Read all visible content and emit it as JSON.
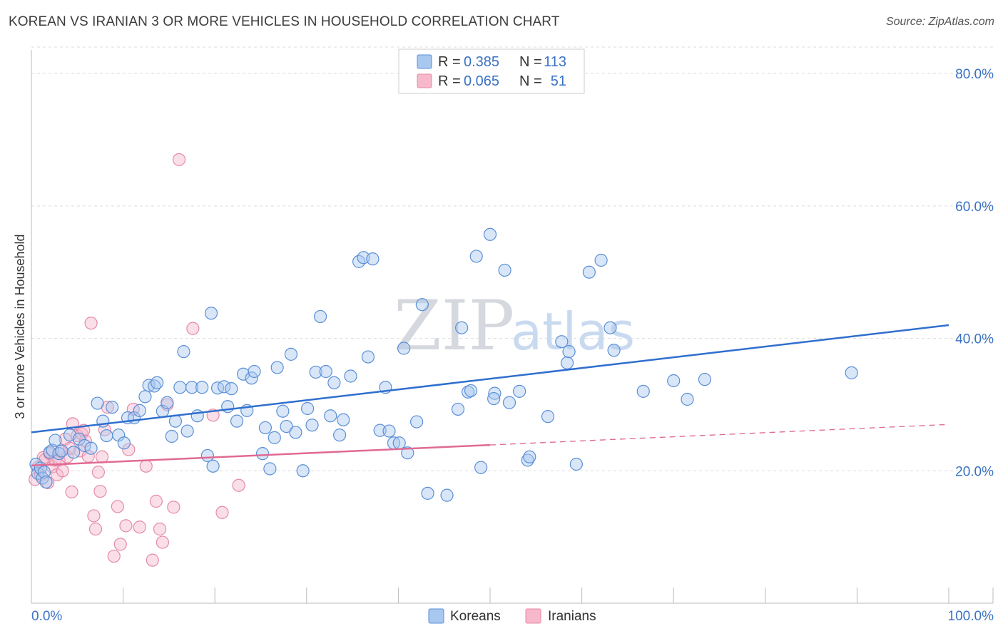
{
  "header": {
    "title": "KOREAN VS IRANIAN 3 OR MORE VEHICLES IN HOUSEHOLD CORRELATION CHART",
    "source": "Source: ZipAtlas.com"
  },
  "watermark": {
    "zip": "ZIP",
    "atlas": "atlas"
  },
  "legend": {
    "r_label": "R =",
    "n_label": "N =",
    "koreans": {
      "r": "0.385",
      "n": "113"
    },
    "iranians": {
      "r": "0.065",
      "n": "51"
    }
  },
  "bottom_legend": {
    "koreans": "Koreans",
    "iranians": "Iranians"
  },
  "colors": {
    "koreans_fill": "#a8c8f0",
    "koreans_stroke": "#5b8fd6",
    "koreans_line": "#2f6fcf",
    "iranians_fill": "#f7b8cb",
    "iranians_stroke": "#e58aa8",
    "iranians_line": "#e06a93"
  },
  "chart_data": {
    "type": "scatter",
    "title": "KOREAN VS IRANIAN 3 OR MORE VEHICLES IN HOUSEHOLD CORRELATION CHART",
    "xlabel": "",
    "ylabel": "3 or more Vehicles in Household",
    "xlim": [
      0,
      100
    ],
    "ylim": [
      0,
      84
    ],
    "x_tick_labels": [
      "0.0%",
      "100.0%"
    ],
    "y_ticks": [
      20,
      40,
      60,
      80
    ],
    "y_tick_labels": [
      "20.0%",
      "40.0%",
      "60.0%",
      "80.0%"
    ],
    "grid": true,
    "series": [
      {
        "name": "Koreans",
        "r": 0.385,
        "n": 113,
        "trend": {
          "x": [
            0,
            100
          ],
          "y": [
            25.8,
            42.0
          ],
          "dashed_from": null
        },
        "points": [
          [
            0.5,
            21.0
          ],
          [
            0.7,
            19.6
          ],
          [
            1.0,
            20.4
          ],
          [
            1.2,
            18.9
          ],
          [
            1.4,
            19.8
          ],
          [
            1.6,
            18.3
          ],
          [
            2.0,
            22.8
          ],
          [
            2.3,
            23.1
          ],
          [
            2.6,
            24.6
          ],
          [
            3.0,
            22.6
          ],
          [
            3.3,
            23.0
          ],
          [
            4.2,
            25.4
          ],
          [
            4.6,
            22.8
          ],
          [
            5.2,
            24.8
          ],
          [
            5.8,
            23.8
          ],
          [
            6.5,
            23.4
          ],
          [
            7.2,
            30.2
          ],
          [
            7.8,
            27.5
          ],
          [
            8.2,
            25.3
          ],
          [
            8.8,
            29.6
          ],
          [
            9.5,
            25.4
          ],
          [
            10.1,
            24.2
          ],
          [
            10.5,
            28.0
          ],
          [
            11.2,
            28.0
          ],
          [
            11.8,
            29.1
          ],
          [
            12.4,
            31.2
          ],
          [
            12.8,
            32.9
          ],
          [
            13.4,
            32.8
          ],
          [
            13.7,
            33.3
          ],
          [
            14.3,
            29.0
          ],
          [
            14.8,
            30.3
          ],
          [
            15.3,
            25.2
          ],
          [
            15.7,
            27.5
          ],
          [
            16.2,
            32.6
          ],
          [
            16.6,
            38.0
          ],
          [
            17.0,
            26.0
          ],
          [
            17.5,
            32.6
          ],
          [
            18.1,
            28.3
          ],
          [
            18.6,
            32.6
          ],
          [
            19.2,
            22.3
          ],
          [
            19.6,
            43.8
          ],
          [
            19.8,
            20.7
          ],
          [
            20.3,
            32.5
          ],
          [
            21.0,
            32.7
          ],
          [
            21.4,
            29.7
          ],
          [
            21.8,
            32.4
          ],
          [
            22.4,
            27.5
          ],
          [
            23.1,
            34.6
          ],
          [
            23.5,
            29.1
          ],
          [
            24.0,
            34.0
          ],
          [
            24.3,
            35.0
          ],
          [
            25.2,
            22.6
          ],
          [
            25.5,
            26.5
          ],
          [
            26.0,
            20.3
          ],
          [
            26.5,
            25.0
          ],
          [
            26.8,
            35.6
          ],
          [
            27.4,
            29.0
          ],
          [
            27.8,
            26.7
          ],
          [
            28.3,
            37.6
          ],
          [
            28.8,
            25.8
          ],
          [
            29.6,
            20.0
          ],
          [
            30.1,
            29.4
          ],
          [
            30.6,
            26.9
          ],
          [
            31.0,
            34.9
          ],
          [
            31.5,
            43.3
          ],
          [
            32.1,
            35.0
          ],
          [
            32.6,
            28.3
          ],
          [
            33.0,
            33.3
          ],
          [
            33.6,
            25.4
          ],
          [
            34.0,
            27.7
          ],
          [
            34.8,
            34.3
          ],
          [
            35.7,
            51.6
          ],
          [
            36.2,
            52.2
          ],
          [
            36.7,
            37.2
          ],
          [
            37.2,
            52.0
          ],
          [
            38.0,
            26.1
          ],
          [
            38.6,
            32.6
          ],
          [
            39.0,
            26.0
          ],
          [
            39.5,
            24.2
          ],
          [
            40.1,
            24.2
          ],
          [
            40.6,
            38.5
          ],
          [
            41.0,
            22.7
          ],
          [
            42.0,
            27.4
          ],
          [
            42.6,
            45.1
          ],
          [
            43.2,
            16.6
          ],
          [
            45.3,
            16.3
          ],
          [
            46.5,
            29.3
          ],
          [
            46.9,
            41.6
          ],
          [
            47.6,
            31.9
          ],
          [
            47.9,
            32.1
          ],
          [
            48.5,
            52.4
          ],
          [
            49.0,
            20.5
          ],
          [
            50.0,
            55.7
          ],
          [
            50.5,
            31.7
          ],
          [
            50.4,
            30.9
          ],
          [
            51.6,
            50.3
          ],
          [
            52.1,
            30.3
          ],
          [
            53.2,
            32.0
          ],
          [
            54.1,
            21.6
          ],
          [
            54.3,
            22.1
          ],
          [
            56.3,
            28.2
          ],
          [
            57.8,
            39.5
          ],
          [
            58.4,
            36.3
          ],
          [
            58.6,
            38.0
          ],
          [
            59.4,
            21.0
          ],
          [
            60.8,
            50.0
          ],
          [
            62.1,
            51.8
          ],
          [
            63.1,
            41.6
          ],
          [
            63.5,
            38.2
          ],
          [
            66.7,
            32.0
          ],
          [
            70.0,
            33.6
          ],
          [
            71.5,
            30.8
          ],
          [
            73.4,
            33.8
          ],
          [
            89.4,
            34.8
          ]
        ]
      },
      {
        "name": "Iranians",
        "r": 0.065,
        "n": 51,
        "trend": {
          "x": [
            0,
            100
          ],
          "y": [
            20.8,
            27.0
          ],
          "solid_until": 50
        },
        "points": [
          [
            0.4,
            18.7
          ],
          [
            0.7,
            20.5
          ],
          [
            1.0,
            19.4
          ],
          [
            1.3,
            22.0
          ],
          [
            1.5,
            21.7
          ],
          [
            1.8,
            18.2
          ],
          [
            2.0,
            22.6
          ],
          [
            2.3,
            20.6
          ],
          [
            2.6,
            21.6
          ],
          [
            2.8,
            19.4
          ],
          [
            3.0,
            21.6
          ],
          [
            3.2,
            22.9
          ],
          [
            3.4,
            20.0
          ],
          [
            3.7,
            24.8
          ],
          [
            3.9,
            22.1
          ],
          [
            4.2,
            23.4
          ],
          [
            4.4,
            16.8
          ],
          [
            4.5,
            27.1
          ],
          [
            5.0,
            25.3
          ],
          [
            5.3,
            23.0
          ],
          [
            5.5,
            25.6
          ],
          [
            5.7,
            26.1
          ],
          [
            5.9,
            24.5
          ],
          [
            6.2,
            22.2
          ],
          [
            6.5,
            42.3
          ],
          [
            6.8,
            13.2
          ],
          [
            7.0,
            11.2
          ],
          [
            7.3,
            19.8
          ],
          [
            7.5,
            16.9
          ],
          [
            7.7,
            22.1
          ],
          [
            8.0,
            26.2
          ],
          [
            8.3,
            29.6
          ],
          [
            9.0,
            7.1
          ],
          [
            9.4,
            14.6
          ],
          [
            9.7,
            8.9
          ],
          [
            10.3,
            11.7
          ],
          [
            10.6,
            23.2
          ],
          [
            11.1,
            29.3
          ],
          [
            11.8,
            11.5
          ],
          [
            12.5,
            20.7
          ],
          [
            13.2,
            6.5
          ],
          [
            13.6,
            15.4
          ],
          [
            14.0,
            11.2
          ],
          [
            14.3,
            9.2
          ],
          [
            14.8,
            30.0
          ],
          [
            15.5,
            14.5
          ],
          [
            16.1,
            67.0
          ],
          [
            17.6,
            41.5
          ],
          [
            19.8,
            28.4
          ],
          [
            20.8,
            13.7
          ],
          [
            22.6,
            17.8
          ]
        ]
      }
    ]
  }
}
